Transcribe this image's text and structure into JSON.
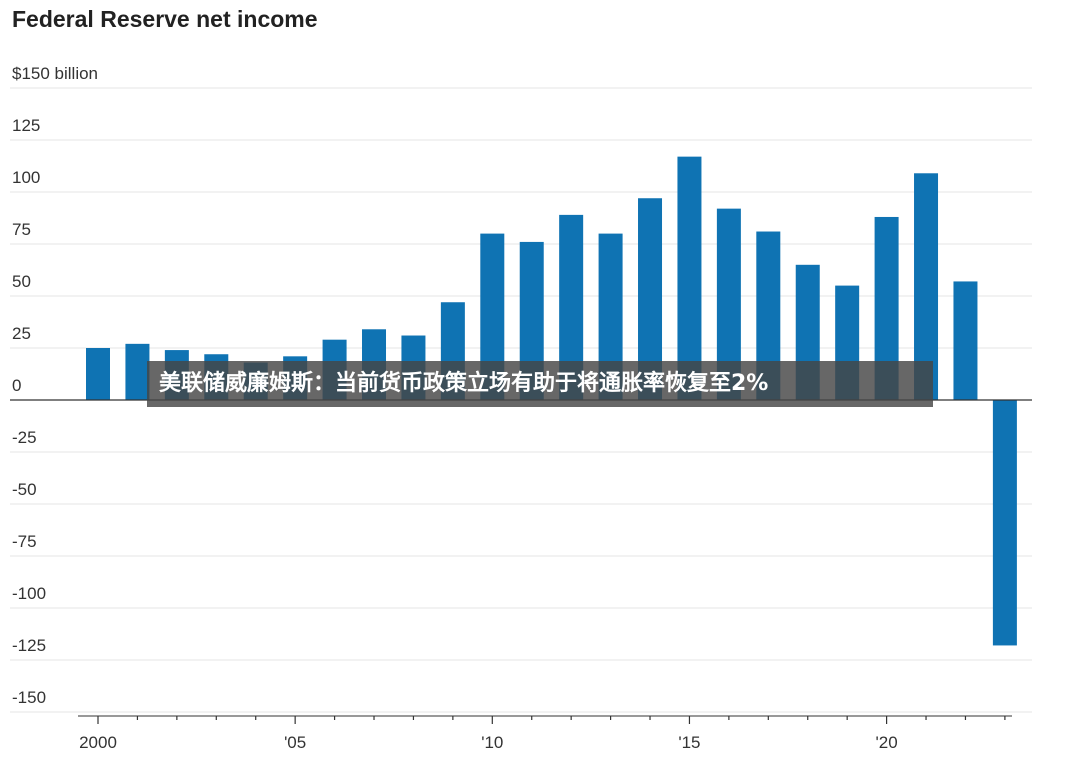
{
  "chart_data": {
    "type": "bar",
    "title": "Federal Reserve net income",
    "y_unit_label": "$150 billion",
    "ylim": [
      -150,
      150
    ],
    "y_ticks": [
      150,
      125,
      100,
      75,
      50,
      25,
      0,
      -25,
      -50,
      -75,
      -100,
      -125,
      -150
    ],
    "y_tick_labels": [
      "$150 billion",
      "125",
      "100",
      "75",
      "50",
      "25",
      "0",
      "-25",
      "-50",
      "-75",
      "-100",
      "-125",
      "-150"
    ],
    "categories": [
      2000,
      2001,
      2002,
      2003,
      2004,
      2005,
      2006,
      2007,
      2008,
      2009,
      2010,
      2011,
      2012,
      2013,
      2014,
      2015,
      2016,
      2017,
      2018,
      2019,
      2020,
      2021,
      2022,
      2023
    ],
    "values": [
      25,
      27,
      24,
      22,
      18,
      21,
      29,
      34,
      31,
      47,
      80,
      76,
      89,
      80,
      97,
      117,
      92,
      81,
      65,
      55,
      88,
      109,
      57,
      -118
    ],
    "x_tick_labels": [
      {
        "year": 2000,
        "label": "2000"
      },
      {
        "year": 2005,
        "label": "'05"
      },
      {
        "year": 2010,
        "label": "'10"
      },
      {
        "year": 2015,
        "label": "'15"
      },
      {
        "year": 2020,
        "label": "'20"
      }
    ],
    "grid": true,
    "bar_color": "#0f73b3",
    "grid_color": "#e4e4e4"
  },
  "overlay": {
    "caption": "美联储威廉姆斯：当前货币政策立场有助于将通胀率恢复至2%"
  }
}
